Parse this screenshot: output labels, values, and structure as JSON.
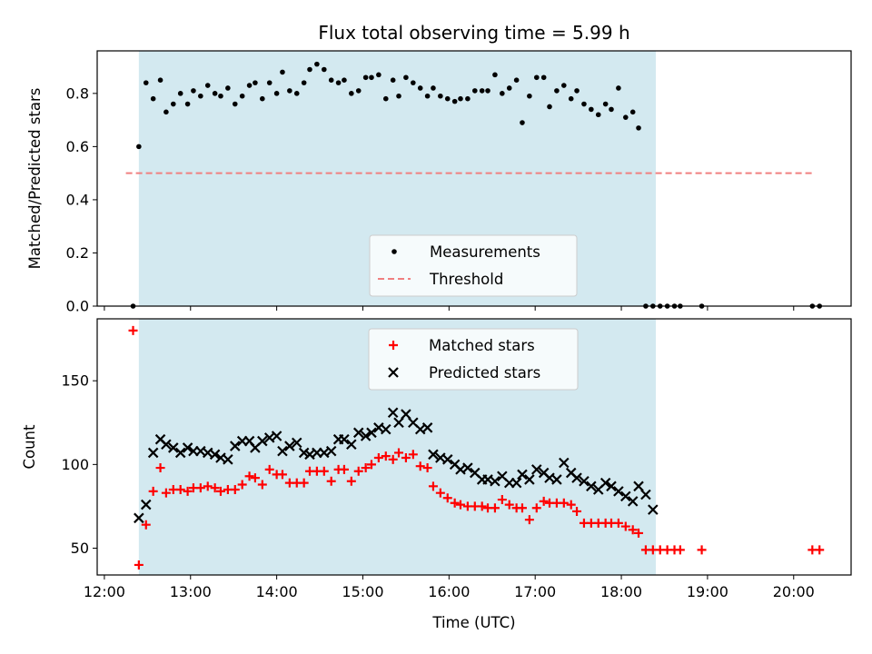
{
  "chart_data": [
    {
      "type": "scatter",
      "title": "Flux total observing time = 5.99 h",
      "xlabel": "",
      "ylabel": "Matched/Predicted stars",
      "xlim": [
        "11:55",
        "20:40"
      ],
      "ylim": [
        0,
        0.96
      ],
      "yticks": [
        0.0,
        0.2,
        0.4,
        0.6,
        0.8
      ],
      "ytick_labels": [
        "0.0",
        "0.2",
        "0.4",
        "0.6",
        "0.8"
      ],
      "shaded_interval": [
        "12:24",
        "18:24"
      ],
      "shade_color": "#d3e9f0",
      "legend_position": "lower center",
      "series": [
        {
          "name": "Measurements",
          "marker": "dot",
          "color": "#000000",
          "x": [
            "12:20",
            "12:24",
            "12:29",
            "12:34",
            "12:39",
            "12:43",
            "12:48",
            "12:53",
            "12:58",
            "13:02",
            "13:07",
            "13:12",
            "13:17",
            "13:21",
            "13:26",
            "13:31",
            "13:36",
            "13:41",
            "13:45",
            "13:50",
            "13:55",
            "14:00",
            "14:04",
            "14:09",
            "14:14",
            "14:19",
            "14:23",
            "14:28",
            "14:33",
            "14:38",
            "14:43",
            "14:47",
            "14:52",
            "14:57",
            "15:02",
            "15:06",
            "15:11",
            "15:16",
            "15:21",
            "15:25",
            "15:30",
            "15:35",
            "15:40",
            "15:45",
            "15:49",
            "15:54",
            "15:59",
            "16:04",
            "16:08",
            "16:13",
            "16:18",
            "16:23",
            "16:27",
            "16:32",
            "16:37",
            "16:42",
            "16:47",
            "16:51",
            "16:56",
            "17:01",
            "17:06",
            "17:10",
            "17:15",
            "17:20",
            "17:25",
            "17:29",
            "17:34",
            "17:39",
            "17:44",
            "17:49",
            "17:53",
            "17:58",
            "18:03",
            "18:08",
            "18:12",
            "18:17",
            "18:22",
            "18:27",
            "18:32",
            "18:37",
            "18:41",
            "18:56",
            "20:13",
            "20:18"
          ],
          "y": [
            0.0,
            0.6,
            0.84,
            0.78,
            0.85,
            0.73,
            0.76,
            0.8,
            0.76,
            0.81,
            0.79,
            0.83,
            0.8,
            0.79,
            0.82,
            0.76,
            0.79,
            0.83,
            0.84,
            0.78,
            0.84,
            0.8,
            0.88,
            0.81,
            0.8,
            0.84,
            0.89,
            0.91,
            0.89,
            0.85,
            0.84,
            0.85,
            0.8,
            0.81,
            0.86,
            0.86,
            0.87,
            0.78,
            0.85,
            0.79,
            0.86,
            0.84,
            0.82,
            0.79,
            0.82,
            0.79,
            0.78,
            0.77,
            0.78,
            0.78,
            0.81,
            0.81,
            0.81,
            0.87,
            0.8,
            0.82,
            0.85,
            0.69,
            0.79,
            0.86,
            0.86,
            0.75,
            0.81,
            0.83,
            0.78,
            0.81,
            0.76,
            0.74,
            0.72,
            0.76,
            0.74,
            0.82,
            0.71,
            0.73,
            0.67,
            0.0,
            0.0,
            0.0,
            0.0,
            0.0,
            0.0,
            0.0,
            0.0,
            0.0
          ]
        },
        {
          "name": "Threshold",
          "marker": "dashed-line",
          "color": "#f08080",
          "x": [
            "12:15",
            "20:15"
          ],
          "y": [
            0.5,
            0.5
          ]
        }
      ]
    },
    {
      "type": "scatter",
      "title": "",
      "xlabel": "Time (UTC)",
      "ylabel": "Count",
      "xlim": [
        "11:55",
        "20:40"
      ],
      "ylim": [
        34,
        187
      ],
      "yticks": [
        50,
        100,
        150
      ],
      "ytick_labels": [
        "50",
        "100",
        "150"
      ],
      "xticks": [
        "12:00",
        "13:00",
        "14:00",
        "15:00",
        "16:00",
        "17:00",
        "18:00",
        "19:00",
        "20:00"
      ],
      "xtick_labels": [
        "12:00",
        "13:00",
        "14:00",
        "15:00",
        "16:00",
        "17:00",
        "18:00",
        "19:00",
        "20:00"
      ],
      "shaded_interval": [
        "12:24",
        "18:24"
      ],
      "shade_color": "#d3e9f0",
      "legend_position": "upper center",
      "series": [
        {
          "name": "Matched stars",
          "marker": "plus",
          "color": "#ff0000",
          "x": [
            "12:20",
            "12:24",
            "12:29",
            "12:34",
            "12:39",
            "12:43",
            "12:48",
            "12:53",
            "12:58",
            "13:02",
            "13:07",
            "13:12",
            "13:17",
            "13:21",
            "13:26",
            "13:31",
            "13:36",
            "13:41",
            "13:45",
            "13:50",
            "13:55",
            "14:00",
            "14:04",
            "14:09",
            "14:14",
            "14:19",
            "14:23",
            "14:28",
            "14:33",
            "14:38",
            "14:43",
            "14:47",
            "14:52",
            "14:57",
            "15:02",
            "15:06",
            "15:11",
            "15:16",
            "15:21",
            "15:25",
            "15:30",
            "15:35",
            "15:40",
            "15:45",
            "15:49",
            "15:54",
            "15:59",
            "16:04",
            "16:08",
            "16:13",
            "16:18",
            "16:23",
            "16:27",
            "16:32",
            "16:37",
            "16:42",
            "16:47",
            "16:51",
            "16:56",
            "17:01",
            "17:06",
            "17:10",
            "17:15",
            "17:20",
            "17:25",
            "17:29",
            "17:34",
            "17:39",
            "17:44",
            "17:49",
            "17:53",
            "17:58",
            "18:03",
            "18:08",
            "18:12",
            "18:17",
            "18:22",
            "18:27",
            "18:32",
            "18:37",
            "18:41",
            "18:56",
            "20:13",
            "20:18"
          ],
          "y": [
            180,
            40,
            64,
            84,
            98,
            83,
            85,
            85,
            84,
            86,
            86,
            87,
            86,
            84,
            85,
            85,
            88,
            93,
            92,
            88,
            97,
            94,
            94,
            89,
            89,
            89,
            96,
            96,
            96,
            90,
            97,
            97,
            90,
            96,
            98,
            100,
            104,
            105,
            103,
            107,
            104,
            106,
            99,
            98,
            87,
            83,
            80,
            77,
            76,
            75,
            75,
            75,
            74,
            74,
            79,
            76,
            74,
            74,
            67,
            74,
            78,
            77,
            77,
            77,
            76,
            72,
            65,
            65,
            65,
            65,
            65,
            65,
            63,
            61,
            59,
            49,
            49,
            49,
            49,
            49,
            49,
            49,
            49,
            49
          ]
        },
        {
          "name": "Predicted stars",
          "marker": "x",
          "color": "#000000",
          "x": [
            "12:24",
            "12:29",
            "12:34",
            "12:39",
            "12:43",
            "12:48",
            "12:53",
            "12:58",
            "13:02",
            "13:07",
            "13:12",
            "13:17",
            "13:21",
            "13:26",
            "13:31",
            "13:36",
            "13:41",
            "13:45",
            "13:50",
            "13:55",
            "14:00",
            "14:04",
            "14:09",
            "14:14",
            "14:19",
            "14:23",
            "14:28",
            "14:33",
            "14:38",
            "14:43",
            "14:47",
            "14:52",
            "14:57",
            "15:02",
            "15:06",
            "15:11",
            "15:16",
            "15:21",
            "15:25",
            "15:30",
            "15:35",
            "15:40",
            "15:45",
            "15:49",
            "15:54",
            "15:59",
            "16:04",
            "16:08",
            "16:13",
            "16:18",
            "16:23",
            "16:27",
            "16:32",
            "16:37",
            "16:42",
            "16:47",
            "16:51",
            "16:56",
            "17:01",
            "17:06",
            "17:10",
            "17:15",
            "17:20",
            "17:25",
            "17:29",
            "17:34",
            "17:39",
            "17:44",
            "17:49",
            "17:53",
            "17:58",
            "18:03",
            "18:08",
            "18:12",
            "18:17",
            "18:22"
          ],
          "y": [
            68,
            76,
            107,
            115,
            112,
            110,
            107,
            110,
            108,
            108,
            107,
            106,
            104,
            103,
            111,
            114,
            114,
            110,
            114,
            116,
            117,
            108,
            111,
            113,
            107,
            106,
            107,
            107,
            108,
            115,
            115,
            112,
            119,
            117,
            119,
            122,
            121,
            131,
            125,
            130,
            125,
            121,
            122,
            106,
            104,
            103,
            100,
            97,
            98,
            95,
            91,
            91,
            90,
            93,
            89,
            89,
            94,
            91,
            97,
            95,
            92,
            91,
            101,
            95,
            92,
            90,
            87,
            85,
            89,
            87,
            84,
            81,
            78,
            87,
            82,
            73
          ]
        }
      ]
    }
  ]
}
